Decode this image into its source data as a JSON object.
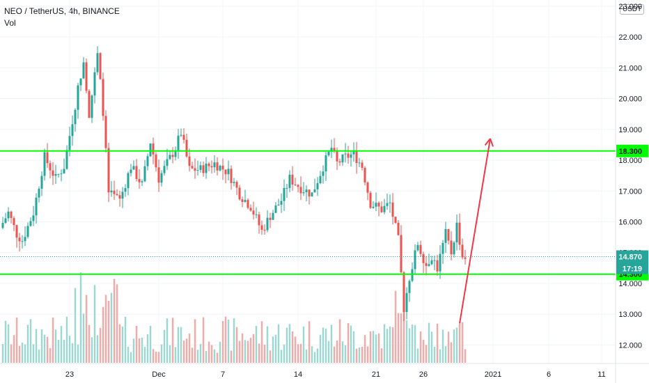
{
  "legend": {
    "title": "NEO / TetherUS, 4h, BINANCE",
    "indicator": "Vol"
  },
  "currency_badge": "USDT",
  "colors": {
    "up": "#26a69a",
    "down": "#ef5350",
    "vol_up": "#9bd8d0",
    "vol_down": "#f5a8a6",
    "level": "#00ff00",
    "arrow": "#f23645",
    "last_price": "#26a69a",
    "grid": "#f0f3fa",
    "axis_text": "#131722"
  },
  "chart_data": {
    "type": "candlestick",
    "symbol": "NEO / TetherUS",
    "interval": "4h",
    "exchange": "BINANCE",
    "ylim": [
      11.4,
      23.2
    ],
    "y_ticks": [
      "23.000",
      "22.000",
      "21.000",
      "20.000",
      "19.000",
      "18.000",
      "17.000",
      "16.000",
      "15.000",
      "14.000",
      "13.000",
      "12.000"
    ],
    "x_ticks": [
      "23",
      "Dec",
      "7",
      "14",
      "21",
      "26",
      "2021",
      "6",
      "11"
    ],
    "key_points": [
      {
        "t": 0,
        "p": 15.8
      },
      {
        "t": 3,
        "p": 16.3
      },
      {
        "t": 6,
        "p": 15.6
      },
      {
        "t": 8,
        "p": 15.4
      },
      {
        "t": 12,
        "p": 16.3
      },
      {
        "t": 16,
        "p": 18.1
      },
      {
        "t": 20,
        "p": 17.4
      },
      {
        "t": 23,
        "p": 17.8
      },
      {
        "t": 27,
        "p": 19.8
      },
      {
        "t": 30,
        "p": 21.3
      },
      {
        "t": 32,
        "p": 19.5
      },
      {
        "t": 35,
        "p": 21.4
      },
      {
        "t": 37,
        "p": 19.6
      },
      {
        "t": 39,
        "p": 16.9
      },
      {
        "t": 43,
        "p": 16.7
      },
      {
        "t": 47,
        "p": 17.8
      },
      {
        "t": 51,
        "p": 17.2
      },
      {
        "t": 54,
        "p": 18.6
      },
      {
        "t": 57,
        "p": 17.4
      },
      {
        "t": 60,
        "p": 17.9
      },
      {
        "t": 63,
        "p": 18.4
      },
      {
        "t": 65,
        "p": 18.9
      },
      {
        "t": 68,
        "p": 17.7
      },
      {
        "t": 72,
        "p": 17.7
      },
      {
        "t": 77,
        "p": 17.9
      },
      {
        "t": 82,
        "p": 17.6
      },
      {
        "t": 86,
        "p": 16.9
      },
      {
        "t": 90,
        "p": 16.5
      },
      {
        "t": 94,
        "p": 15.7
      },
      {
        "t": 97,
        "p": 16.2
      },
      {
        "t": 101,
        "p": 16.7
      },
      {
        "t": 104,
        "p": 17.4
      },
      {
        "t": 108,
        "p": 17.1
      },
      {
        "t": 112,
        "p": 16.9
      },
      {
        "t": 116,
        "p": 17.8
      },
      {
        "t": 119,
        "p": 18.4
      },
      {
        "t": 121,
        "p": 17.9
      },
      {
        "t": 124,
        "p": 18.1
      },
      {
        "t": 127,
        "p": 18.2
      },
      {
        "t": 130,
        "p": 17.8
      },
      {
        "t": 133,
        "p": 16.6
      },
      {
        "t": 137,
        "p": 16.4
      },
      {
        "t": 140,
        "p": 16.6
      },
      {
        "t": 143,
        "p": 15.4
      },
      {
        "t": 145,
        "p": 13.2
      },
      {
        "t": 147,
        "p": 14.2
      },
      {
        "t": 150,
        "p": 15.3
      },
      {
        "t": 153,
        "p": 14.6
      },
      {
        "t": 155,
        "p": 14.9
      },
      {
        "t": 157,
        "p": 14.5
      },
      {
        "t": 160,
        "p": 15.6
      },
      {
        "t": 162,
        "p": 15.0
      },
      {
        "t": 164,
        "p": 15.9
      },
      {
        "t": 166,
        "p": 14.87
      }
    ],
    "levels": [
      {
        "value": 18.3,
        "label": "18.300"
      },
      {
        "value": 14.3,
        "label": "14.300"
      }
    ],
    "last_price": {
      "value": 14.87,
      "label": "14.870",
      "countdown": "17:19"
    },
    "arrow": {
      "from": {
        "bar": 164,
        "price": 12.7
      },
      "to": {
        "bar": 175,
        "price": 18.7
      }
    }
  }
}
